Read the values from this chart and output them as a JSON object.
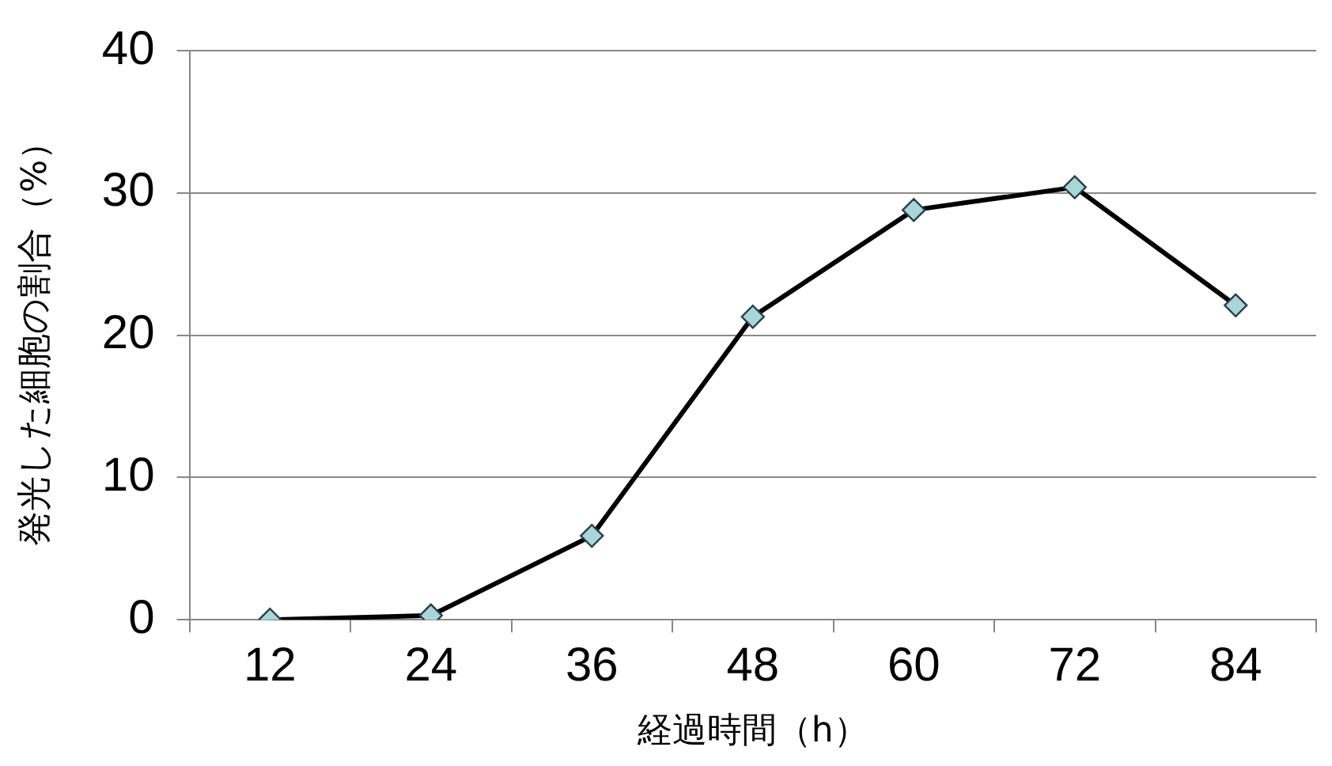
{
  "chart_data": {
    "type": "line",
    "xlabel": "経過時間（h）",
    "ylabel": "発光した細胞の割合（%）",
    "categories": [
      "12",
      "24",
      "36",
      "48",
      "60",
      "72",
      "84"
    ],
    "series": [
      {
        "color": "#000000",
        "values": [
          0,
          0.3,
          5.9,
          21.3,
          28.8,
          30.4,
          22.1
        ]
      }
    ],
    "ylim": [
      0,
      40
    ],
    "yticks": [
      0,
      10,
      20,
      30,
      40
    ],
    "grid": "y",
    "legend": false,
    "marker": "diamond",
    "line_style": "solid"
  }
}
